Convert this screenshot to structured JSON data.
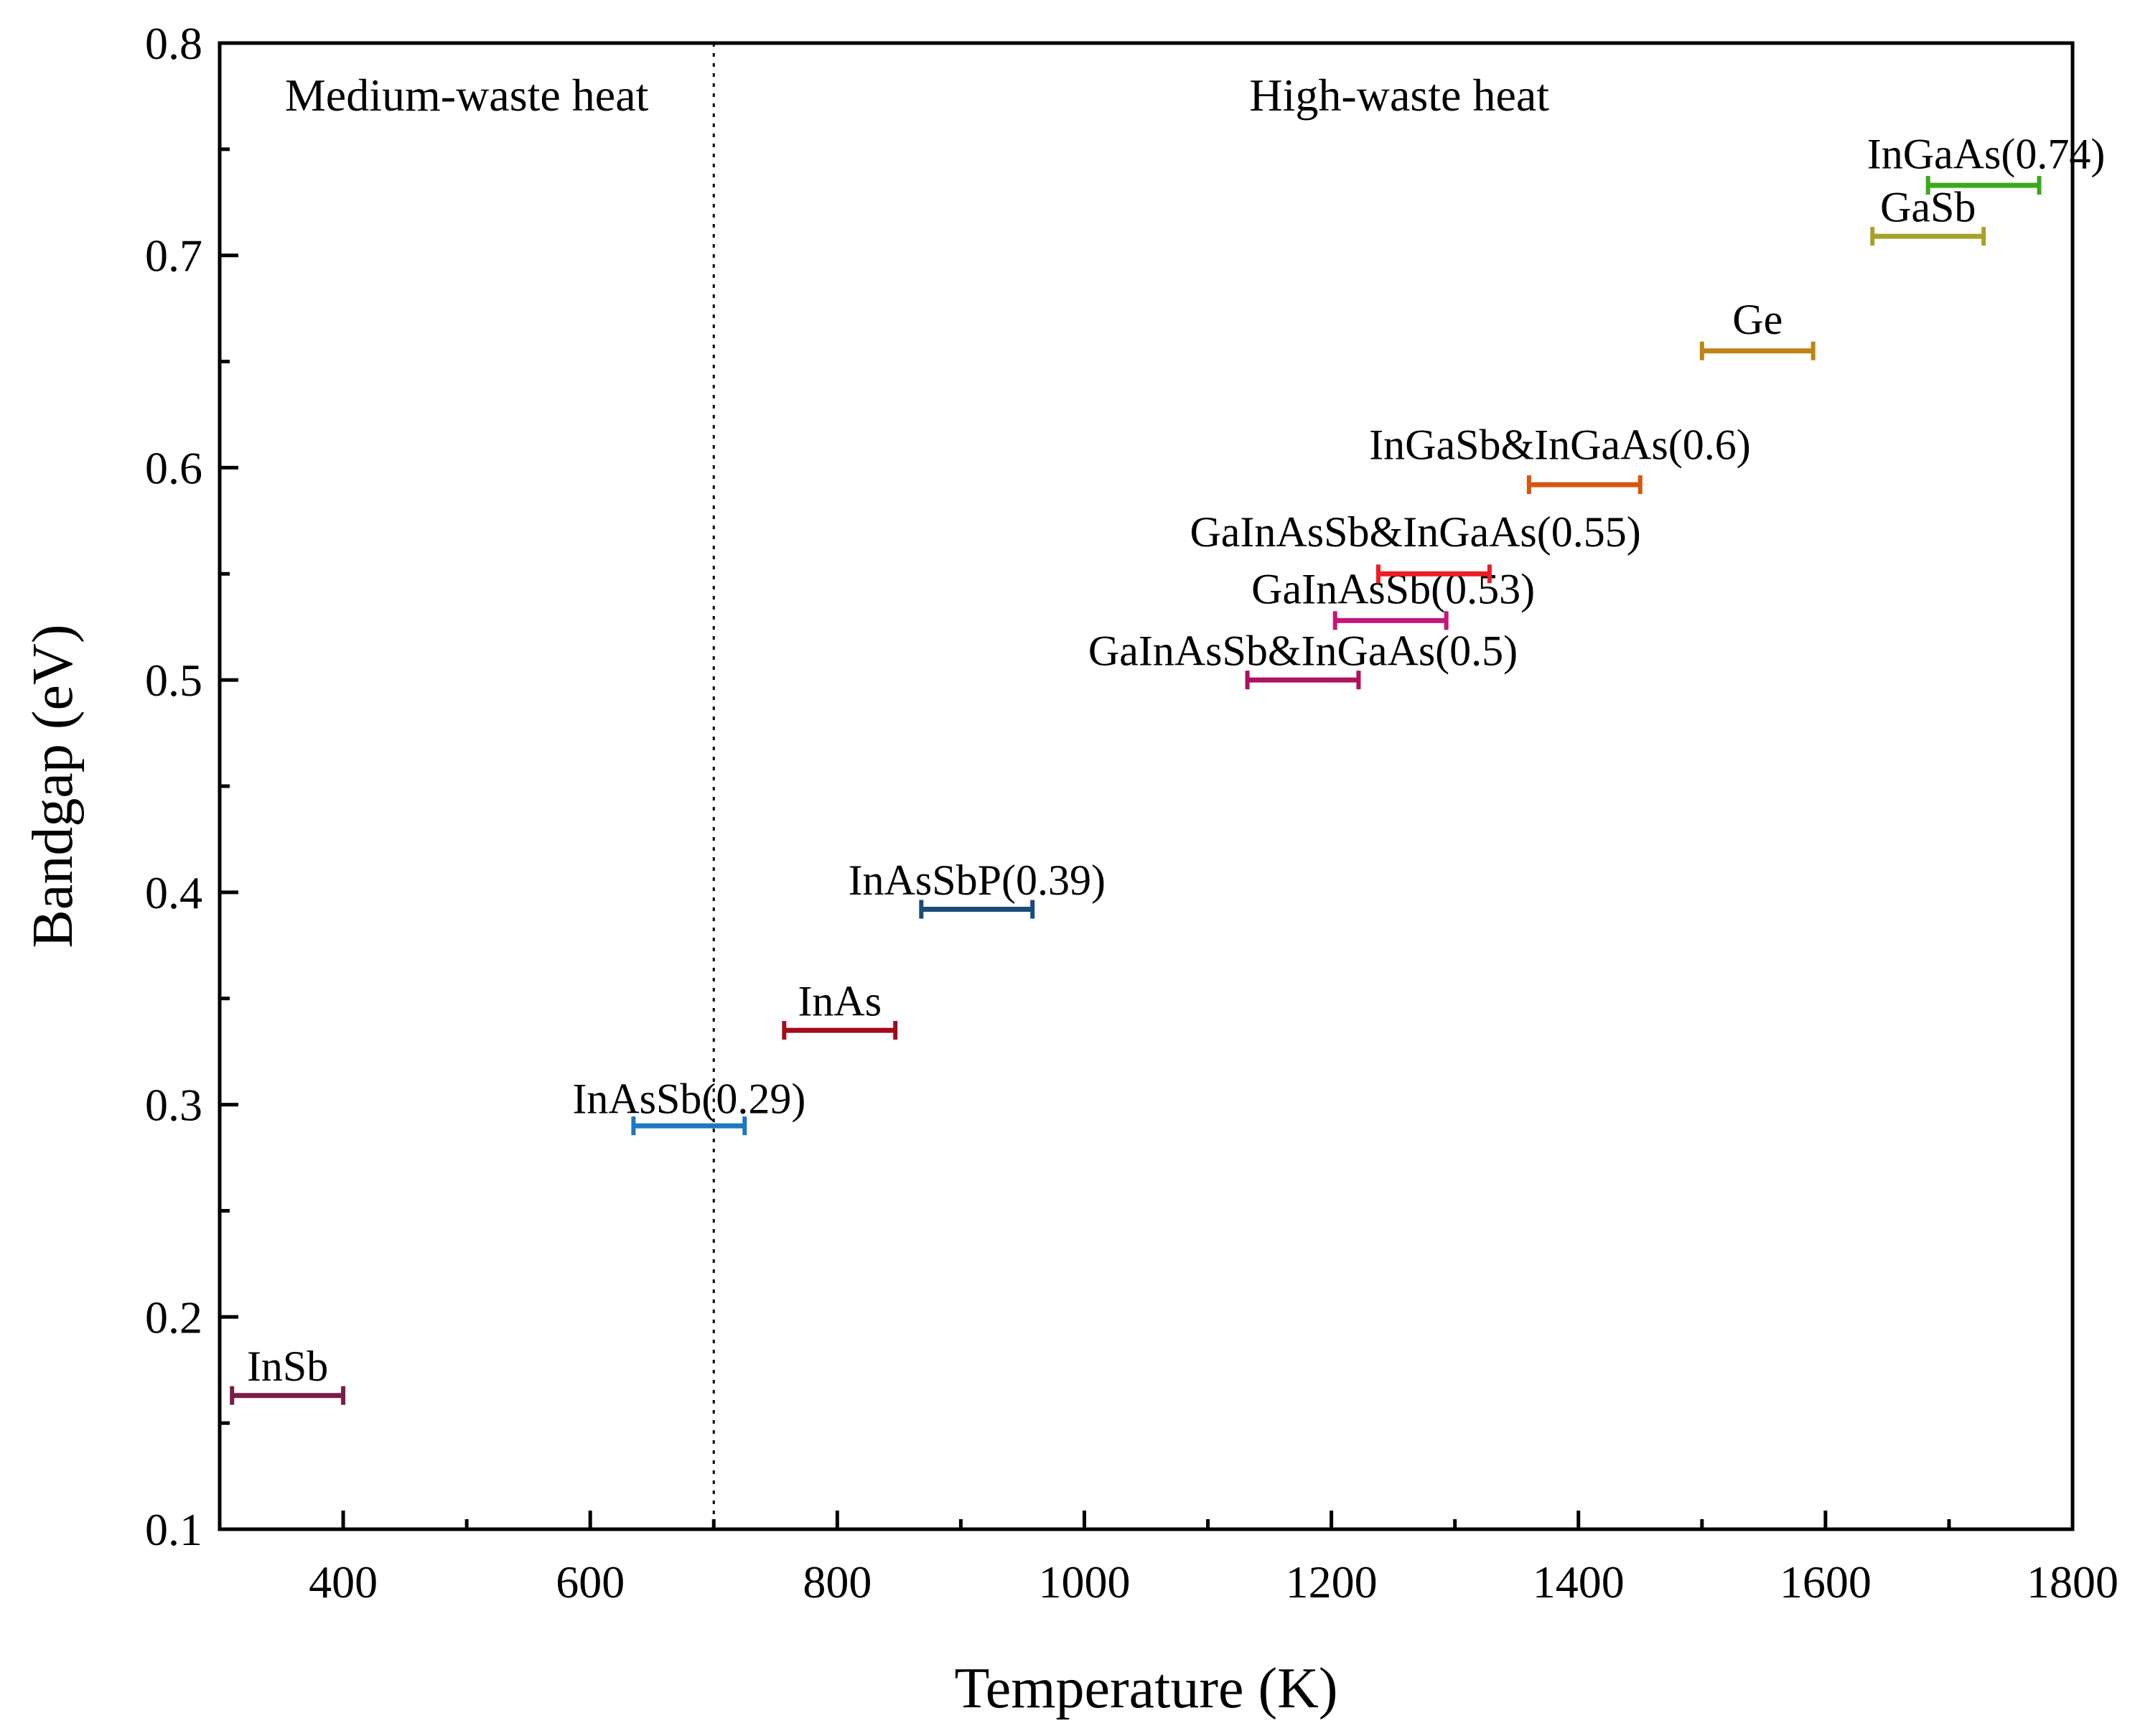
{
  "chart_data": {
    "type": "range",
    "title": "",
    "xlabel": "Temperature (K)",
    "ylabel": "Bandgap (eV)",
    "xlim": [
      300,
      1800
    ],
    "ylim": [
      0.1,
      0.8
    ],
    "x_ticks": [
      400,
      600,
      800,
      1000,
      1200,
      1400,
      1600,
      1800
    ],
    "x_tick_labels": [
      "400",
      "600",
      "800",
      "1000",
      "1200",
      "1400",
      "1600",
      "1800"
    ],
    "x_minor_ticks": [
      500,
      700,
      900,
      1100,
      1300,
      1500,
      1700
    ],
    "y_ticks": [
      0.1,
      0.2,
      0.3,
      0.4,
      0.5,
      0.6,
      0.7,
      0.8
    ],
    "y_tick_labels": [
      "0.1",
      "0.2",
      "0.3",
      "0.4",
      "0.5",
      "0.6",
      "0.7",
      "0.8"
    ],
    "y_minor_ticks": [
      0.15,
      0.25,
      0.35,
      0.45,
      0.55,
      0.65,
      0.75
    ],
    "grid": false,
    "divider": {
      "x": 700,
      "style": "dotted"
    },
    "regions": [
      {
        "label": "Medium-waste heat",
        "x": 500,
        "y": 0.775
      },
      {
        "label": "High-waste heat",
        "x": 1255,
        "y": 0.775
      }
    ],
    "series": [
      {
        "name": "InSb",
        "x_start": 310,
        "x_end": 400,
        "bandgap": 0.163,
        "color": "#7b1c48",
        "label_x": 355,
        "label_y": 0.17
      },
      {
        "name": "InAsSb(0.29)",
        "x_start": 635,
        "x_end": 725,
        "bandgap": 0.29,
        "color": "#1f77c0",
        "label_x": 680,
        "label_y": 0.296
      },
      {
        "name": "InAs",
        "x_start": 757,
        "x_end": 847,
        "bandgap": 0.335,
        "color": "#a00d1a",
        "label_x": 802,
        "label_y": 0.342
      },
      {
        "name": "InAsSbP(0.39)",
        "x_start": 868,
        "x_end": 958,
        "bandgap": 0.392,
        "color": "#1b4b78",
        "label_x": 913,
        "label_y": 0.399
      },
      {
        "name": "GaInAsSb&InGaAs(0.5)",
        "x_start": 1132,
        "x_end": 1222,
        "bandgap": 0.5,
        "color": "#b0105e",
        "label_x": 1177,
        "label_y": 0.507
      },
      {
        "name": "GaInAsSb(0.53)",
        "x_start": 1203,
        "x_end": 1293,
        "bandgap": 0.528,
        "color": "#c4177a",
        "label_x": 1250,
        "label_y": 0.536
      },
      {
        "name": "GaInAsSb&InGaAs(0.55)",
        "x_start": 1238,
        "x_end": 1328,
        "bandgap": 0.55,
        "color": "#ee1c24",
        "label_x": 1268,
        "label_y": 0.563
      },
      {
        "name": "InGaSb&InGaAs(0.6)",
        "x_start": 1360,
        "x_end": 1450,
        "bandgap": 0.592,
        "color": "#d5570f",
        "label_x": 1385,
        "label_y": 0.604
      },
      {
        "name": "Ge",
        "x_start": 1500,
        "x_end": 1590,
        "bandgap": 0.655,
        "color": "#c08416",
        "label_x": 1545,
        "label_y": 0.663
      },
      {
        "name": "GaSb",
        "x_start": 1638,
        "x_end": 1728,
        "bandgap": 0.709,
        "color": "#a8a12a",
        "label_x": 1683,
        "label_y": 0.716
      },
      {
        "name": "InGaAs(0.74)",
        "x_start": 1683,
        "x_end": 1773,
        "bandgap": 0.733,
        "color": "#3aa91a",
        "label_x": 1730,
        "label_y": 0.741
      }
    ]
  }
}
